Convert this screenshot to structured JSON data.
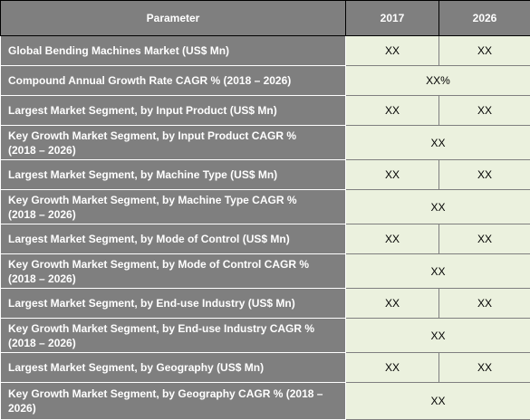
{
  "table": {
    "headers": [
      "Parameter",
      "2017",
      "2026"
    ],
    "rows": [
      {
        "parameter": "Global Bending Machines Market (US$ Mn)",
        "v2017": "XX",
        "v2026": "XX"
      },
      {
        "parameter": "Compound Annual Growth Rate CAGR % (2018 – 2026)",
        "merged": "XX%"
      },
      {
        "parameter": "Largest Market Segment, by Input Product (US$ Mn)",
        "v2017": "XX",
        "v2026": "XX"
      },
      {
        "parameter_line1": "Key Growth Market Segment, by Input Product CAGR %",
        "parameter_line2": " (2018 – 2026)",
        "merged": "XX"
      },
      {
        "parameter": "Largest Market Segment, by Machine Type (US$ Mn)",
        "v2017": "XX",
        "v2026": "XX"
      },
      {
        "parameter_line1": "Key Growth Market Segment, by Machine Type CAGR %",
        "parameter_line2": " (2018 – 2026)",
        "merged": "XX"
      },
      {
        "parameter": "Largest Market Segment, by Mode of Control (US$ Mn)",
        "v2017": "XX",
        "v2026": "XX"
      },
      {
        "parameter_line1": "Key Growth Market Segment, by Mode of Control CAGR %",
        "parameter_line2": " (2018 – 2026)",
        "merged": "XX"
      },
      {
        "parameter": "Largest Market Segment, by End-use Industry (US$ Mn)",
        "v2017": "XX",
        "v2026": "XX"
      },
      {
        "parameter_line1": "Key Growth Market Segment, by End-use Industry CAGR %",
        "parameter_line2": " (2018 – 2026)",
        "merged": "XX"
      },
      {
        "parameter": "Largest Market Segment, by Geography (US$ Mn)",
        "v2017": "XX",
        "v2026": "XX"
      },
      {
        "parameter_line1": "Key Growth Market Segment, by Geography CAGR % (2018 –",
        "parameter_line2": "2026)",
        "merged": "XX"
      }
    ]
  },
  "colors": {
    "header_bg": "#7f7f7f",
    "param_bg": "#7f7f7f",
    "value_bg": "#ebf1de"
  }
}
